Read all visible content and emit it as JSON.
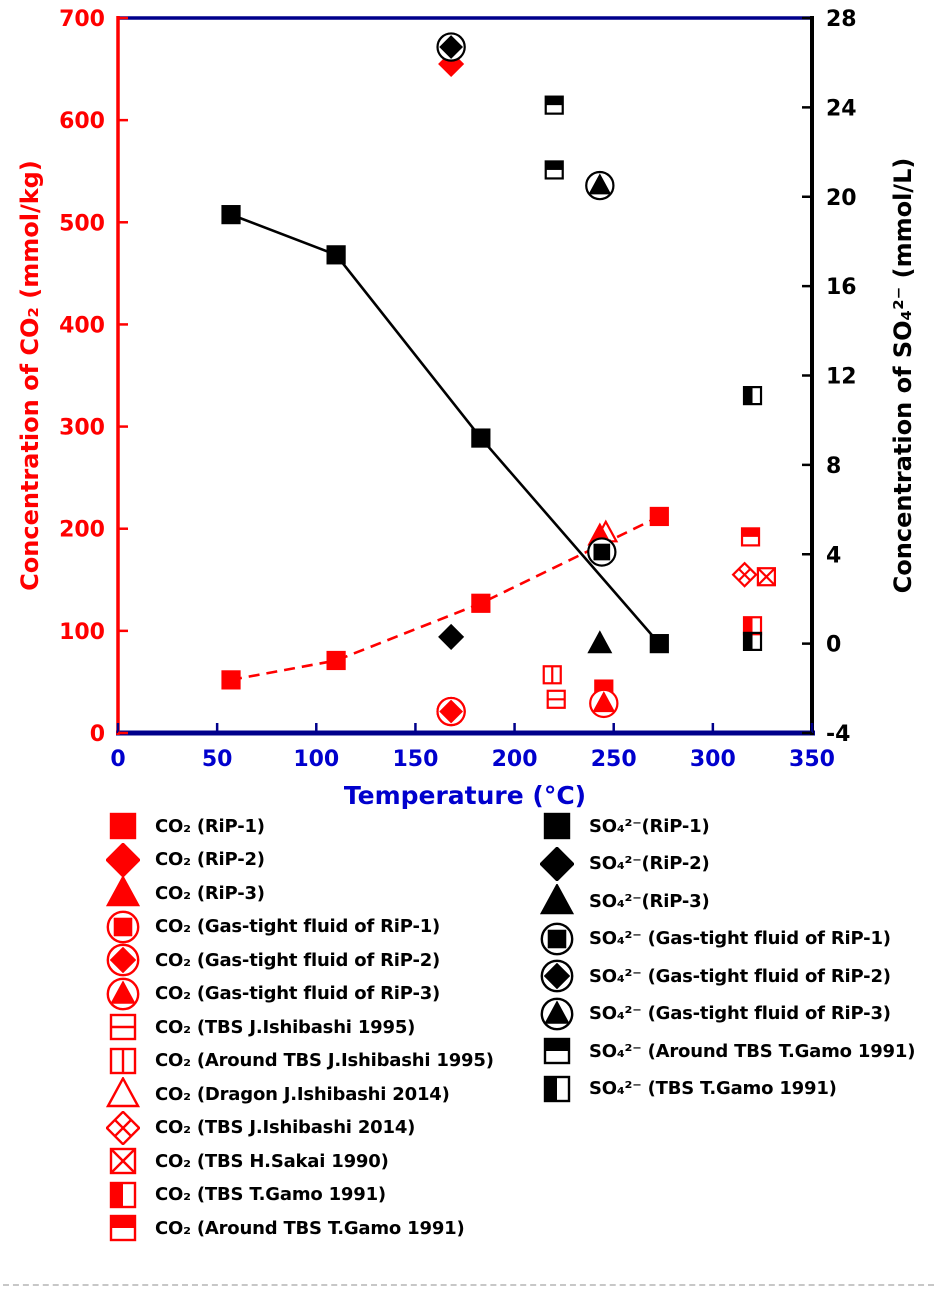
{
  "chart_data": {
    "type": "scatter",
    "title": "",
    "xlabel": "Temperature (°C)",
    "ylabel_left": "Concentration of CO₂ (mmol/kg)",
    "ylabel_right": "Concentration of SO₄²⁻ (mmol/L)",
    "x_range": [
      0,
      350
    ],
    "x_ticks": [
      0,
      50,
      100,
      150,
      200,
      250,
      300,
      350
    ],
    "y_left_range": [
      0,
      700
    ],
    "y_left_ticks": [
      0,
      100,
      200,
      300,
      400,
      500,
      600,
      700
    ],
    "y_right_range": [
      -4,
      28
    ],
    "y_right_ticks": [
      -4,
      0,
      4,
      8,
      12,
      16,
      20,
      24,
      28
    ],
    "grid": false,
    "legend_position": "below",
    "colors": {
      "co2": "#FF0000",
      "so4": "#000000",
      "frame": "#00008B",
      "x_text": "#0000CD"
    },
    "series": [
      {
        "id": "co2-rip1",
        "name": "CO₂ (RiP-1)",
        "axis": "left",
        "color": "#FF0000",
        "marker": "sq",
        "line": "dashed",
        "line_points": [
          [
            57,
            52
          ],
          [
            110,
            71
          ],
          [
            183,
            127
          ],
          [
            273,
            212
          ]
        ],
        "points": [
          [
            57,
            52
          ],
          [
            110,
            71
          ],
          [
            183,
            127
          ],
          [
            245,
            43
          ],
          [
            273,
            212
          ]
        ]
      },
      {
        "id": "co2-rip2",
        "name": "CO₂ (RiP-2)",
        "axis": "left",
        "color": "#FF0000",
        "marker": "di",
        "points": [
          [
            168,
            655
          ]
        ]
      },
      {
        "id": "co2-rip3",
        "name": "CO₂ (RiP-3)",
        "axis": "left",
        "color": "#FF0000",
        "marker": "tr",
        "points": [
          [
            243,
            193
          ]
        ]
      },
      {
        "id": "co2-gastight-rip1",
        "name": "CO₂ (Gas-tight fluid of RiP-1)",
        "axis": "left",
        "color": "#FF0000",
        "marker": "sq_c",
        "points": [
          [
            168,
            21
          ]
        ]
      },
      {
        "id": "co2-gastight-rip2",
        "name": "CO₂ (Gas-tight fluid of RiP-2)",
        "axis": "left",
        "color": "#FF0000",
        "marker": "di_c",
        "points": [
          [
            168,
            21
          ]
        ]
      },
      {
        "id": "co2-gastight-rip3",
        "name": "CO₂ (Gas-tight fluid of RiP-3)",
        "axis": "left",
        "color": "#FF0000",
        "marker": "tr_c",
        "points": [
          [
            245,
            29
          ]
        ]
      },
      {
        "id": "co2-tbs-ishibashi-1995",
        "name": "CO₂ (TBS J.Ishibashi 1995)",
        "axis": "left",
        "color": "#FF0000",
        "marker": "sq_h",
        "points": [
          [
            221,
            33
          ]
        ]
      },
      {
        "id": "co2-around-tbs-ishibashi-1995",
        "name": "CO₂ (Around TBS J.Ishibashi 1995)",
        "axis": "left",
        "color": "#FF0000",
        "marker": "sq_v",
        "points": [
          [
            219,
            57
          ]
        ]
      },
      {
        "id": "co2-dragon-ishibashi-2014",
        "name": "CO₂ (Dragon J.Ishibashi 2014)",
        "axis": "left",
        "color": "#FF0000",
        "marker": "tr_o",
        "points": [
          [
            246,
            196
          ]
        ]
      },
      {
        "id": "co2-tbs-ishibashi-2014",
        "name": "CO₂ (TBS J.Ishibashi 2014)",
        "axis": "left",
        "color": "#FF0000",
        "marker": "di_x",
        "points": [
          [
            316,
            155
          ]
        ]
      },
      {
        "id": "co2-tbs-sakai-1990",
        "name": "CO₂ (TBS H.Sakai 1990)",
        "axis": "left",
        "color": "#FF0000",
        "marker": "sq_x",
        "points": [
          [
            327,
            153
          ]
        ]
      },
      {
        "id": "co2-tbs-gamo-1991",
        "name": "CO₂ (TBS T.Gamo 1991)",
        "axis": "left",
        "color": "#FF0000",
        "marker": "sq_hl",
        "points": [
          [
            320,
            105
          ]
        ]
      },
      {
        "id": "co2-around-tbs-gamo-1991",
        "name": "CO₂ (Around TBS T.Gamo 1991)",
        "axis": "left",
        "color": "#FF0000",
        "marker": "sq_ht",
        "points": [
          [
            319,
            192
          ]
        ]
      },
      {
        "id": "so4-rip1",
        "name": "SO₄²⁻(RiP-1)",
        "axis": "right",
        "color": "#000000",
        "marker": "sq",
        "line": "solid",
        "line_points": [
          [
            57,
            19.2
          ],
          [
            110,
            17.4
          ],
          [
            183,
            9.2
          ],
          [
            273,
            0.0
          ]
        ],
        "points": [
          [
            57,
            19.2
          ],
          [
            110,
            17.4
          ],
          [
            183,
            9.2
          ],
          [
            273,
            0.0
          ]
        ]
      },
      {
        "id": "so4-rip2",
        "name": "SO₄²⁻(RiP-2)",
        "axis": "right",
        "color": "#000000",
        "marker": "di",
        "points": [
          [
            168,
            0.3
          ]
        ]
      },
      {
        "id": "so4-rip3",
        "name": "SO₄²⁻(RiP-3)",
        "axis": "right",
        "color": "#000000",
        "marker": "tr",
        "points": [
          [
            243,
            0.0
          ]
        ]
      },
      {
        "id": "so4-gastight-rip1",
        "name": "SO₄²⁻ (Gas-tight fluid of RiP-1)",
        "axis": "right",
        "color": "#000000",
        "marker": "sq_c",
        "points": [
          [
            244,
            4.1
          ]
        ]
      },
      {
        "id": "so4-gastight-rip2",
        "name": "SO₄²⁻ (Gas-tight fluid of RiP-2)",
        "axis": "right",
        "color": "#000000",
        "marker": "di_c",
        "points": [
          [
            168,
            26.7
          ]
        ]
      },
      {
        "id": "so4-gastight-rip3",
        "name": "SO₄²⁻ (Gas-tight fluid of RiP-3)",
        "axis": "right",
        "color": "#000000",
        "marker": "tr_c",
        "points": [
          [
            243,
            20.5
          ]
        ]
      },
      {
        "id": "so4-around-tbs-gamo-1991",
        "name": "SO₄²⁻ (Around TBS T.Gamo 1991)",
        "axis": "right",
        "color": "#000000",
        "marker": "sq_ht",
        "points": [
          [
            220,
            24.1
          ],
          [
            220,
            21.2
          ]
        ]
      },
      {
        "id": "so4-tbs-gamo-1991",
        "name": "SO₄²⁻ (TBS T.Gamo 1991)",
        "axis": "right",
        "color": "#000000",
        "marker": "sq_hl",
        "points": [
          [
            320,
            11.1
          ],
          [
            320,
            0.1
          ]
        ]
      }
    ]
  },
  "legend": {
    "left": [
      {
        "label": "CO₂ (RiP-1)",
        "marker": "sq",
        "color": "#FF0000"
      },
      {
        "label": "CO₂ (RiP-2)",
        "marker": "di",
        "color": "#FF0000"
      },
      {
        "label": "CO₂ (RiP-3)",
        "marker": "tr",
        "color": "#FF0000"
      },
      {
        "label": "CO₂ (Gas-tight fluid of RiP-1)",
        "marker": "sq_c",
        "color": "#FF0000"
      },
      {
        "label": "CO₂ (Gas-tight fluid of RiP-2)",
        "marker": "di_c",
        "color": "#FF0000"
      },
      {
        "label": "CO₂ (Gas-tight fluid of RiP-3)",
        "marker": "tr_c",
        "color": "#FF0000"
      },
      {
        "label": "CO₂ (TBS J.Ishibashi 1995)",
        "marker": "sq_h",
        "color": "#FF0000"
      },
      {
        "label": "CO₂ (Around TBS J.Ishibashi 1995)",
        "marker": "sq_v",
        "color": "#FF0000"
      },
      {
        "label": "CO₂ (Dragon J.Ishibashi 2014)",
        "marker": "tr_o",
        "color": "#FF0000"
      },
      {
        "label": "CO₂ (TBS J.Ishibashi 2014)",
        "marker": "di_x",
        "color": "#FF0000"
      },
      {
        "label": "CO₂ (TBS H.Sakai 1990)",
        "marker": "sq_x",
        "color": "#FF0000"
      },
      {
        "label": "CO₂ (TBS T.Gamo 1991)",
        "marker": "sq_hl",
        "color": "#FF0000"
      },
      {
        "label": "CO₂ (Around TBS T.Gamo 1991)",
        "marker": "sq_ht",
        "color": "#FF0000"
      }
    ],
    "right": [
      {
        "label": "SO₄²⁻(RiP-1)",
        "marker": "sq",
        "color": "#000000"
      },
      {
        "label": "SO₄²⁻(RiP-2)",
        "marker": "di",
        "color": "#000000"
      },
      {
        "label": "SO₄²⁻(RiP-3)",
        "marker": "tr",
        "color": "#000000"
      },
      {
        "label": "SO₄²⁻ (Gas-tight fluid of RiP-1)",
        "marker": "sq_c",
        "color": "#000000"
      },
      {
        "label": "SO₄²⁻ (Gas-tight fluid of RiP-2)",
        "marker": "di_c",
        "color": "#000000"
      },
      {
        "label": "SO₄²⁻ (Gas-tight fluid of RiP-3)",
        "marker": "tr_c",
        "color": "#000000"
      },
      {
        "label": "SO₄²⁻ (Around TBS T.Gamo 1991)",
        "marker": "sq_ht",
        "color": "#000000"
      },
      {
        "label": "SO₄²⁻ (TBS T.Gamo 1991)",
        "marker": "sq_hl",
        "color": "#000000"
      }
    ]
  }
}
